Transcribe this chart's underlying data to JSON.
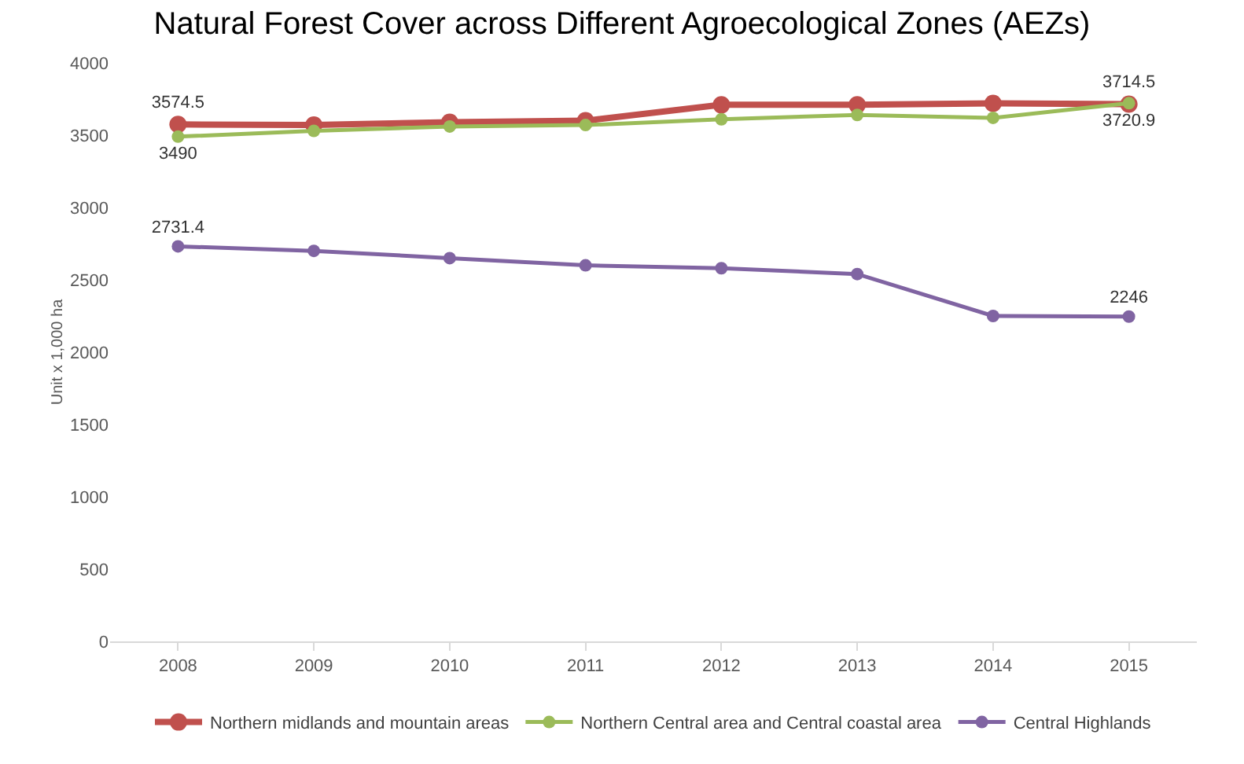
{
  "chart_data": {
    "type": "line",
    "title": "Natural Forest Cover across Different Agroecological Zones (AEZs)",
    "ylabel": "Unit x 1,000 ha",
    "categories": [
      "2008",
      "2009",
      "2010",
      "2011",
      "2012",
      "2013",
      "2014",
      "2015"
    ],
    "series": [
      {
        "name": "Northern midlands and mountain areas",
        "color": "#c0504d",
        "values": [
          3574.5,
          3570,
          3590,
          3600,
          3710,
          3710,
          3720,
          3714.5
        ],
        "value_labels": [
          "3574.5",
          null,
          null,
          null,
          null,
          null,
          null,
          "3714.5"
        ]
      },
      {
        "name": "Northern Central area and Central coastal area",
        "color": "#9bbb59",
        "values": [
          3490,
          3530,
          3560,
          3570,
          3610,
          3640,
          3620,
          3720.9
        ],
        "value_labels": [
          "3490",
          null,
          null,
          null,
          null,
          null,
          null,
          "3720.9"
        ]
      },
      {
        "name": "Central Highlands",
        "color": "#8064a2",
        "values": [
          2731.4,
          2700,
          2650,
          2600,
          2580,
          2540,
          2250,
          2246
        ],
        "value_labels": [
          "2731.4",
          null,
          null,
          null,
          null,
          null,
          null,
          "2246"
        ]
      }
    ],
    "ylim": [
      0,
      4000
    ],
    "yticks": [
      0,
      500,
      1000,
      1500,
      2000,
      2500,
      3000,
      3500,
      4000
    ],
    "grid": false,
    "legend": "bottom",
    "marker": "circle",
    "line_style": "solid"
  }
}
